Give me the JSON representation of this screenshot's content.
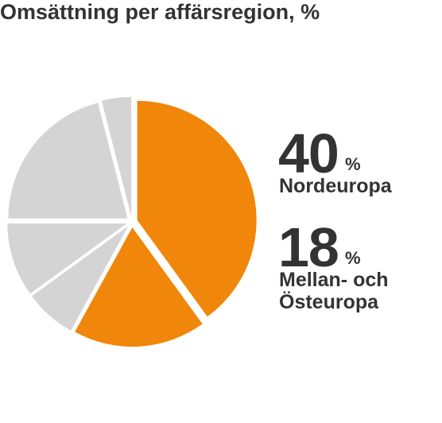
{
  "chart_data": {
    "type": "pie",
    "title": "Omsättning per affärsregion, %",
    "categories": [
      "Nordeuropa",
      "Mellan- och Östeuropa",
      null,
      null,
      null,
      null
    ],
    "values": [
      40,
      18,
      7,
      10,
      21,
      4
    ],
    "colors": [
      "#f0870a",
      "#f0870a",
      "#d4d4d4",
      "#d4d4d4",
      "#d4d4d4",
      "#d4d4d4"
    ],
    "unit_label": "%"
  }
}
